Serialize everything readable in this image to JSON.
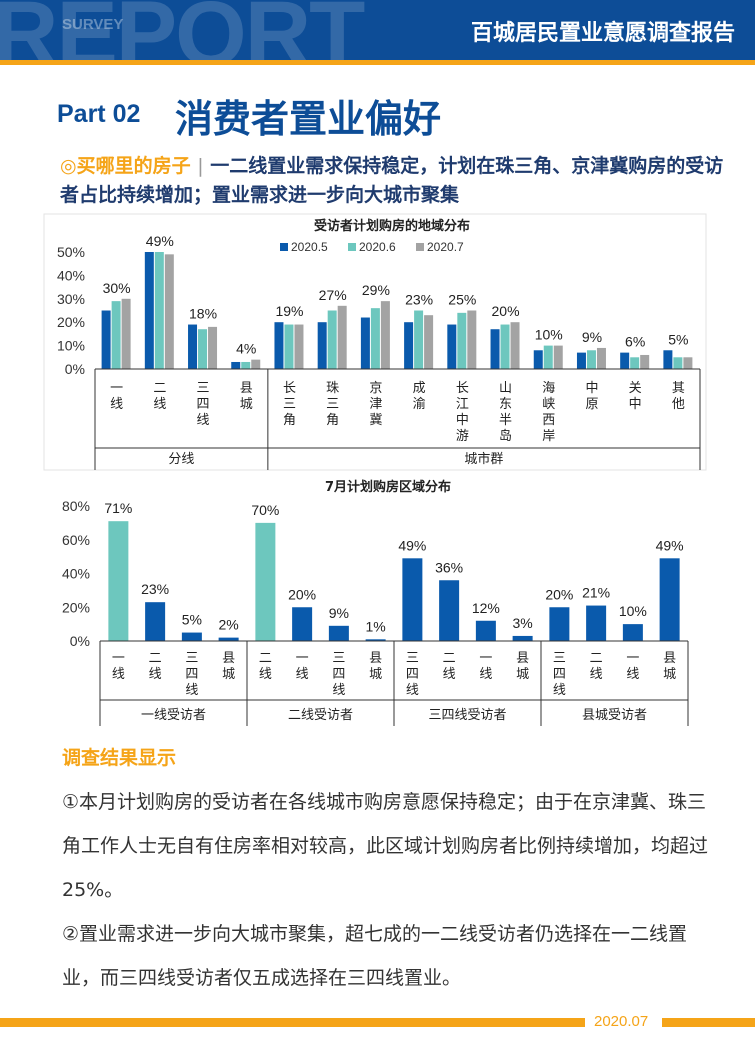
{
  "header": {
    "bg_word": "REPORT",
    "bg_small": "SURVEY",
    "report_title": "百城居民置业意愿调查报告"
  },
  "part_label": "Part  02",
  "page_title": "消费者置业偏好",
  "subhead": {
    "marker": "◎",
    "highlight": "买哪里的房子",
    "separator": "|",
    "text": "一二线置业需求保持稳定，计划在珠三角、京津冀购房的受访者占比持续增加；置业需求进一步向大城市聚集"
  },
  "colors": {
    "dark_blue": "#0a5aac",
    "teal": "#6dc7be",
    "gray": "#a3a3a3",
    "orange": "#f5a418"
  },
  "chart_data": [
    {
      "type": "bar",
      "title": "受访者计划购房的地域分布",
      "ylim": [
        0,
        50
      ],
      "y_ticks": [
        "0%",
        "10%",
        "20%",
        "30%",
        "40%",
        "50%"
      ],
      "legend_position": "top",
      "series": [
        {
          "name": "2020.5",
          "color": "#0a5aac",
          "values": [
            25,
            50,
            19,
            3,
            20,
            20,
            22,
            20,
            19,
            17,
            8,
            7,
            7,
            8
          ]
        },
        {
          "name": "2020.6",
          "color": "#6dc7be",
          "values": [
            29,
            50,
            17,
            3,
            19,
            25,
            26,
            25,
            24,
            19,
            10,
            8,
            5,
            5
          ]
        },
        {
          "name": "2020.7",
          "color": "#a3a3a3",
          "values": [
            30,
            49,
            18,
            4,
            19,
            27,
            29,
            23,
            25,
            20,
            10,
            9,
            6,
            5
          ]
        }
      ],
      "data_labels": [
        "30%",
        "49%",
        "18%",
        "4%",
        "19%",
        "27%",
        "29%",
        "23%",
        "25%",
        "20%",
        "10%",
        "9%",
        "6%",
        "5%"
      ],
      "groups": [
        {
          "label": "分线",
          "categories": [
            "一线",
            "二线",
            "三四线",
            "县城"
          ]
        },
        {
          "label": "城市群",
          "categories": [
            "长三角",
            "珠三角",
            "京津冀",
            "成渝",
            "长江中游",
            "山东半岛",
            "海峡西岸",
            "中原",
            "关中",
            "其他"
          ]
        }
      ]
    },
    {
      "type": "bar",
      "title": "7月计划购房区域分布",
      "ylim": [
        0,
        80
      ],
      "y_ticks": [
        "0%",
        "20%",
        "40%",
        "60%",
        "80%"
      ],
      "groups": [
        {
          "label": "一线受访者",
          "categories": [
            "一线",
            "二线",
            "三四线",
            "县城"
          ],
          "values": [
            71,
            23,
            5,
            2
          ],
          "data_labels": [
            "71%",
            "23%",
            "5%",
            "2%"
          ],
          "highlight_index": 0
        },
        {
          "label": "二线受访者",
          "categories": [
            "二线",
            "一线",
            "三四线",
            "县城"
          ],
          "values": [
            70,
            20,
            9,
            1
          ],
          "data_labels": [
            "70%",
            "20%",
            "9%",
            "1%"
          ],
          "highlight_index": 0
        },
        {
          "label": "三四线受访者",
          "categories": [
            "三四线",
            "二线",
            "一线",
            "县城"
          ],
          "values": [
            49,
            36,
            12,
            3
          ],
          "data_labels": [
            "49%",
            "36%",
            "12%",
            "3%"
          ],
          "highlight_index": 0
        },
        {
          "label": "县城受访者",
          "categories": [
            "三四线",
            "二线",
            "一线",
            "县城"
          ],
          "values": [
            20,
            21,
            10,
            49
          ],
          "data_labels": [
            "20%",
            "21%",
            "10%",
            "49%"
          ],
          "highlight_index": 3
        }
      ]
    }
  ],
  "results": {
    "title": "调查结果显示",
    "p1": "①本月计划购房的受访者在各线城市购房意愿保持稳定；由于在京津冀、珠三角工作人士无自有住房率相对较高，此区域计划购房者比例持续增加，均超过25%。",
    "p2": "②置业需求进一步向大城市聚集，超七成的一二线受访者仍选择在一二线置业，而三四线受访者仅五成选择在三四线置业。"
  },
  "footer": {
    "date": "2020.07"
  }
}
